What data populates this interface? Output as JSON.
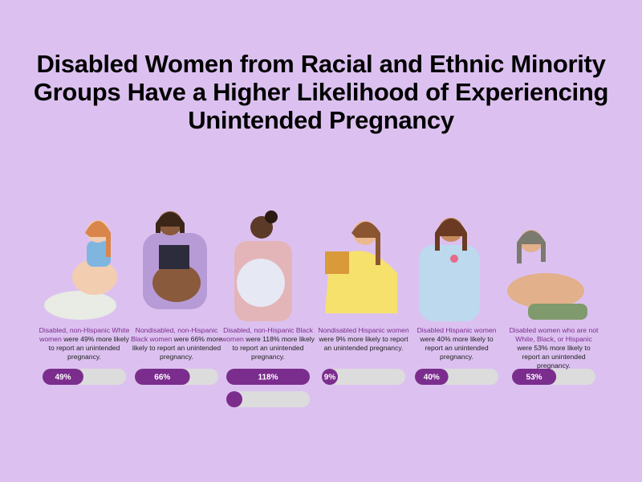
{
  "chart_data": {
    "type": "progress",
    "title": "Disabled Women from Racial and Ethnic Minority Groups Have a Higher Likelihood of Experiencing Unintended Pregnancy",
    "groups": [
      "Disabled, non-Hispanic White women",
      "Nondisabled, non-Hispanic Black women",
      "Disabled, non-Hispanic Black women",
      "Nondisabled Hispanic women",
      "Disabled Hispanic women",
      "Disabled women who are not White, Black, or Hispanic"
    ],
    "descriptions": [
      "were 49% more likely to report an unintended pregnancy.",
      "were 66% more likely to report an unintended pregnancy.",
      "were 118% more likely to report an unintended pregnancy.",
      "were 9% more likely to report an unintended pregnancy.",
      "were 40% more likely to report an unintended pregnancy.",
      "were 53% more likely to report an unintended pregnancy."
    ],
    "values": [
      49,
      66,
      118,
      9,
      40,
      53
    ],
    "value_labels": [
      "49%",
      "66%",
      "118%",
      "9%",
      "40%",
      "53%"
    ],
    "xlim": [
      0,
      100
    ],
    "color": "#7b2d8e",
    "track_color": "#dcdcdc"
  }
}
